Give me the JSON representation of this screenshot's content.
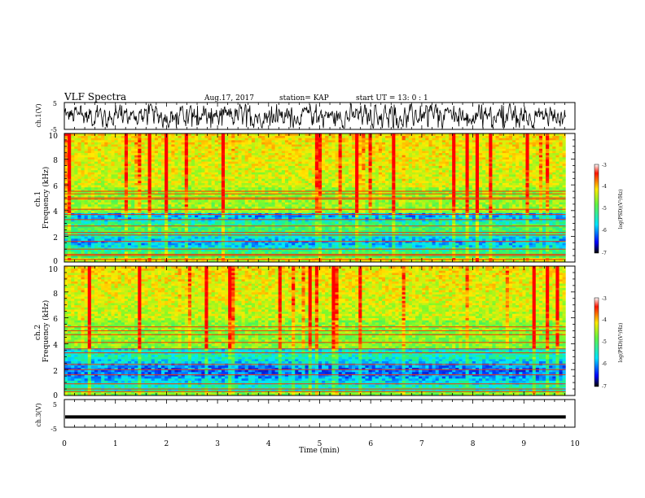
{
  "header": {
    "title": "VLF Spectra",
    "date": "Aug.17, 2017",
    "station": "station= KAP",
    "start": "start  UT =   13: 0  : 1"
  },
  "chart_data": [
    {
      "id": "ch1-waveform",
      "type": "line",
      "ylabel": "ch.1(V)",
      "ylim": [
        -5,
        5
      ],
      "yticks": [
        "5",
        "-5"
      ],
      "xlim": [
        0,
        10
      ],
      "data_extent_min": 9.82
    },
    {
      "id": "ch1-spectrogram",
      "type": "heatmap",
      "ylabel": "ch.1\nFrequency (kHz)",
      "ylim": [
        0,
        10
      ],
      "yticks": [
        "0",
        "2",
        "4",
        "6",
        "8",
        "10"
      ],
      "xlim": [
        0,
        10
      ],
      "colorbar": {
        "label": "log(PSD)(V²/Hz)",
        "range": [
          -7,
          -3
        ],
        "ticks": [
          "-3",
          "-4",
          "-5",
          "-6",
          "-7"
        ]
      },
      "bands_khz": [
        0.2,
        0.5,
        0.6,
        1.0,
        1.6,
        2.1,
        2.3,
        2.8,
        3.3,
        3.7,
        4.1,
        4.9,
        5.0,
        5.3,
        5.5
      ]
    },
    {
      "id": "ch2-spectrogram",
      "type": "heatmap",
      "ylabel": "ch.2\nFrequency (kHz)",
      "ylim": [
        0,
        10
      ],
      "yticks": [
        "0",
        "2",
        "4",
        "6",
        "8",
        "10"
      ],
      "xlim": [
        0,
        10
      ],
      "colorbar": {
        "label": "log(PSD)(V²/Hz)",
        "range": [
          -7,
          -3
        ],
        "ticks": [
          "-3",
          "-4",
          "-5",
          "-6",
          "-7"
        ]
      },
      "bands_khz": [
        0.3,
        0.5,
        0.9,
        1.6,
        2.0,
        2.4,
        3.3,
        3.6,
        4.1,
        4.7,
        5.0,
        5.3
      ]
    },
    {
      "id": "ch3-waveform",
      "type": "line",
      "ylabel": "ch.3(V)",
      "ylim": [
        -5,
        5
      ],
      "yticks": [
        "5",
        "-5"
      ],
      "xlim": [
        0,
        10
      ],
      "values_const": -1.3,
      "data_extent_min": 9.82,
      "xlabel": "Time (min)",
      "xticks": [
        "0",
        "1",
        "2",
        "3",
        "4",
        "5",
        "6",
        "7",
        "8",
        "9",
        "10"
      ]
    }
  ],
  "colors": {
    "low": "#00008b",
    "mid_low": "#00e0ff",
    "mid": "#7cff3c",
    "mid_high": "#ffe000",
    "high": "#ff0000",
    "line": "#000000"
  }
}
